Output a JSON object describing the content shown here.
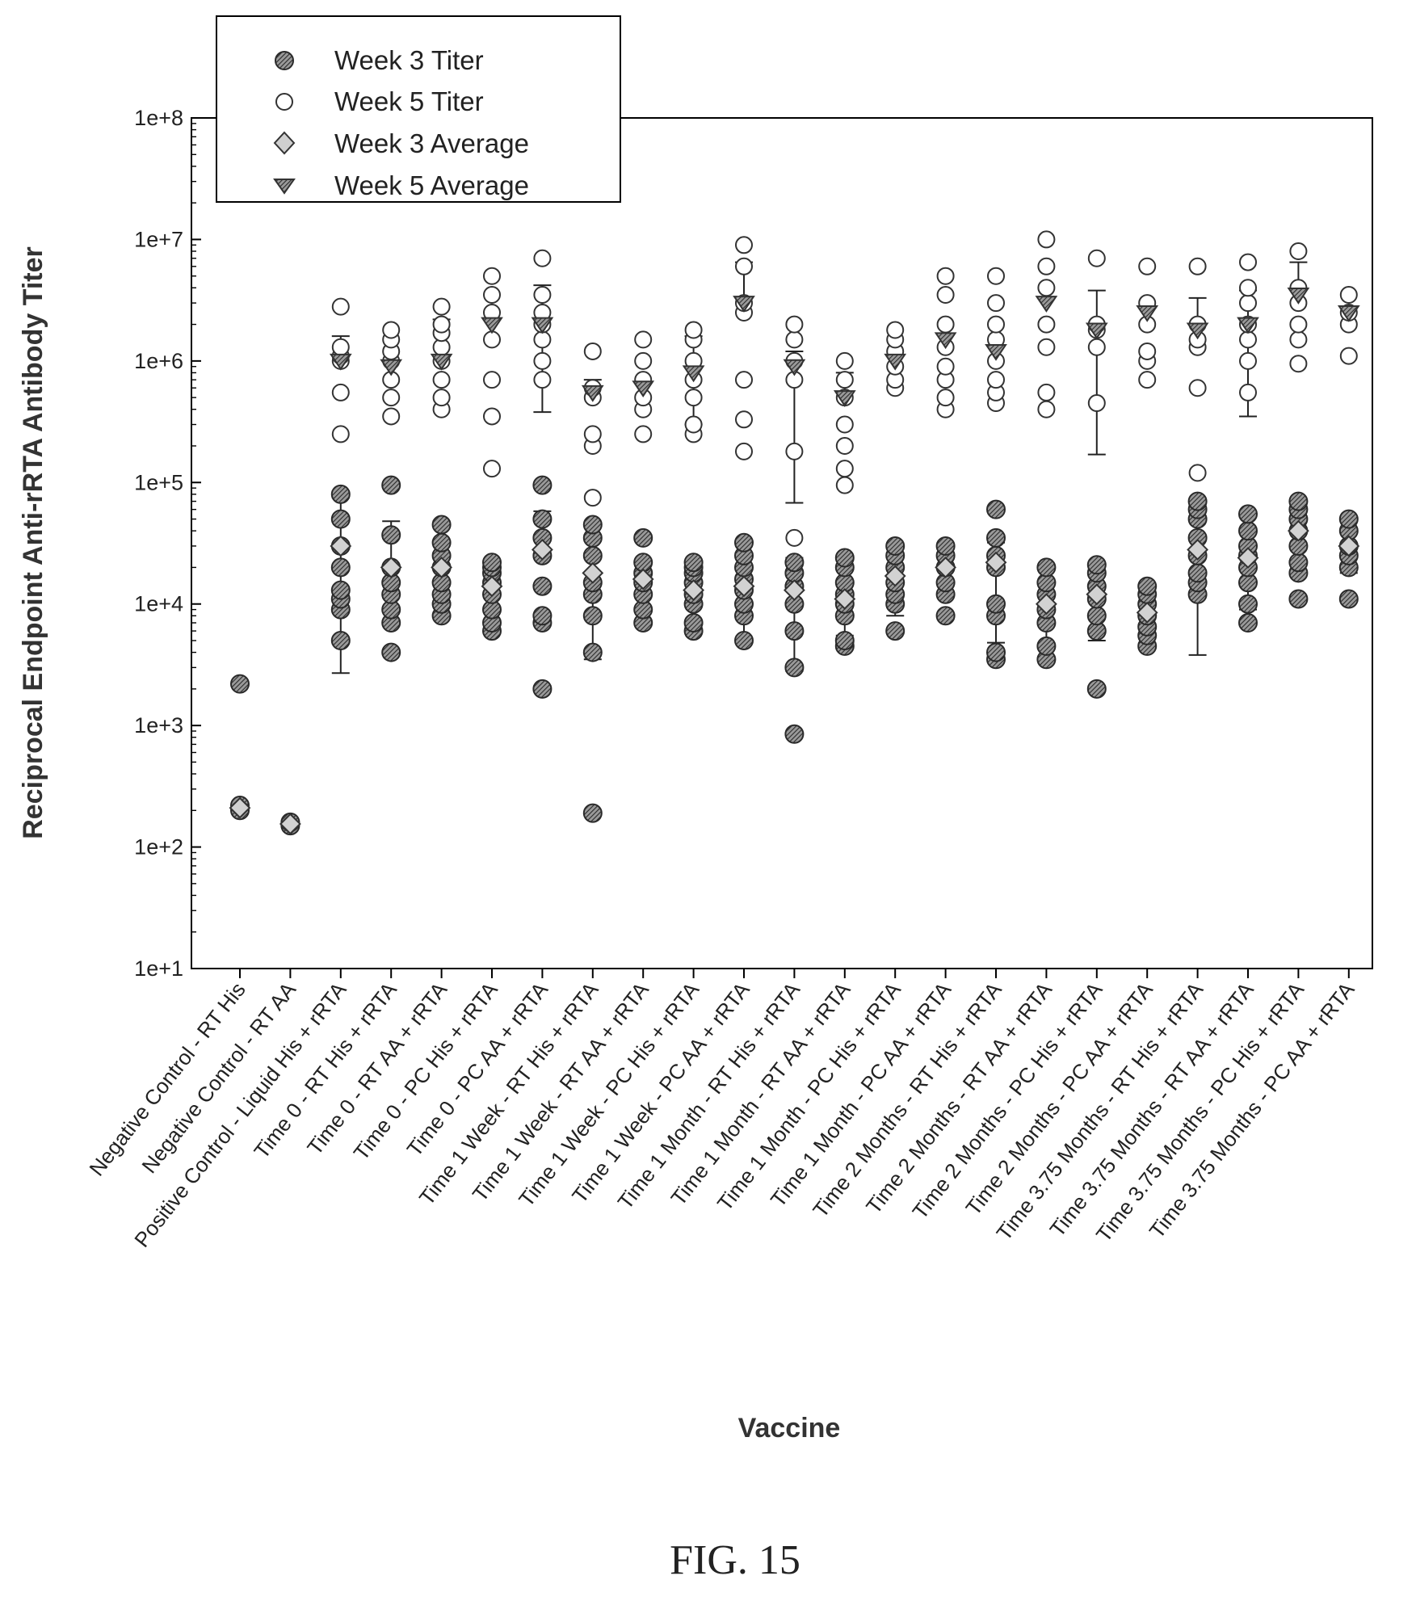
{
  "chart_data": {
    "type": "scatter",
    "ylabel": "Reciprocal Endpoint Anti-rRTA Antibody Titer",
    "xlabel": "Vaccine",
    "y_scale": "log",
    "ylim": [
      10,
      100000000
    ],
    "y_ticks": [
      "1e+1",
      "1e+2",
      "1e+3",
      "1e+4",
      "1e+5",
      "1e+6",
      "1e+7",
      "1e+8"
    ],
    "legend_position": "top-left",
    "legend": [
      {
        "label": "Week 3 Titer",
        "marker": "filled-circle"
      },
      {
        "label": "Week 5 Titer",
        "marker": "open-circle"
      },
      {
        "label": "Week 3 Average",
        "marker": "diamond"
      },
      {
        "label": "Week 5 Average",
        "marker": "triangle-down"
      }
    ],
    "categories": [
      "Negative Control - RT His",
      "Negative Control - RT AA",
      "Positive Control - Liquid His + rRTA",
      "Time 0 - RT His + rRTA",
      "Time 0 - RT AA + rRTA",
      "Time 0 - PC His + rRTA",
      "Time 0 - PC AA + rRTA",
      "Time 1 Week - RT His + rRTA",
      "Time 1 Week - RT AA + rRTA",
      "Time 1 Week - PC His + rRTA",
      "Time 1 Week - PC AA + rRTA",
      "Time 1 Month - RT His + rRTA",
      "Time 1 Month - RT AA + rRTA",
      "Time 1 Month - PC His + rRTA",
      "Time 1 Month - PC AA + rRTA",
      "Time 2 Months - RT His + rRTA",
      "Time 2 Months - RT AA + rRTA",
      "Time 2 Months - PC His + rRTA",
      "Time 2 Months - PC AA + rRTA",
      "Time 3.75 Months - RT His + rRTA",
      "Time 3.75 Months - RT AA + rRTA",
      "Time 3.75 Months - PC His + rRTA",
      "Time 3.75 Months - PC AA + rRTA"
    ],
    "series": [
      {
        "name": "Week 3 Titer",
        "values": [
          [
            2200,
            220,
            200
          ],
          [
            150,
            160
          ],
          [
            5000,
            9000,
            11000,
            13000,
            20000,
            30000,
            50000,
            80000
          ],
          [
            4000,
            7000,
            9000,
            12000,
            15000,
            20000,
            37000,
            95000
          ],
          [
            8000,
            10000,
            12000,
            15000,
            20000,
            25000,
            32000,
            45000
          ],
          [
            6000,
            7000,
            9000,
            12000,
            15000,
            18000,
            20000,
            22000
          ],
          [
            2000,
            7000,
            8000,
            14000,
            25000,
            35000,
            50000,
            95000
          ],
          [
            190,
            4000,
            8000,
            12000,
            15000,
            25000,
            35000,
            45000
          ],
          [
            7000,
            9000,
            12000,
            15000,
            18000,
            22000,
            35000
          ],
          [
            6000,
            7000,
            10000,
            12000,
            15000,
            18000,
            20000,
            22000
          ],
          [
            5000,
            8000,
            10000,
            13000,
            16000,
            20000,
            25000,
            32000
          ],
          [
            850,
            3000,
            6000,
            10000,
            14000,
            18000,
            22000
          ],
          [
            4500,
            5000,
            8000,
            10000,
            12000,
            15000,
            20000,
            24000
          ],
          [
            6000,
            10000,
            12000,
            15000,
            20000,
            25000,
            30000
          ],
          [
            8000,
            12000,
            15000,
            20000,
            25000,
            30000
          ],
          [
            3500,
            4000,
            8000,
            10000,
            20000,
            25000,
            35000,
            60000
          ],
          [
            3500,
            4500,
            7000,
            9000,
            12000,
            15000,
            20000
          ],
          [
            2000,
            6000,
            8000,
            11000,
            14000,
            18000,
            21000
          ],
          [
            4500,
            5500,
            6500,
            8000,
            10000,
            12000,
            14000
          ],
          [
            12000,
            15000,
            18000,
            25000,
            35000,
            50000,
            60000,
            70000
          ],
          [
            7000,
            10000,
            15000,
            20000,
            25000,
            30000,
            40000,
            55000
          ],
          [
            11000,
            18000,
            22000,
            30000,
            40000,
            50000,
            60000,
            70000
          ],
          [
            11000,
            20000,
            25000,
            30000,
            40000,
            50000
          ]
        ]
      },
      {
        "name": "Week 5 Titer",
        "values": [
          [],
          [],
          [
            250000,
            550000,
            1000000,
            1100000,
            1300000,
            2800000
          ],
          [
            350000,
            500000,
            700000,
            1000000,
            1200000,
            1500000,
            1800000
          ],
          [
            400000,
            500000,
            700000,
            1000000,
            1300000,
            1700000,
            2000000,
            2800000
          ],
          [
            130000,
            350000,
            700000,
            1500000,
            2500000,
            3500000,
            5000000
          ],
          [
            700000,
            1000000,
            1500000,
            2000000,
            2500000,
            3500000,
            7000000
          ],
          [
            75000,
            200000,
            250000,
            500000,
            600000,
            1200000
          ],
          [
            250000,
            400000,
            500000,
            700000,
            1000000,
            1500000
          ],
          [
            250000,
            300000,
            500000,
            700000,
            1000000,
            1500000,
            1800000
          ],
          [
            180000,
            330000,
            700000,
            2500000,
            3000000,
            6000000,
            9000000
          ],
          [
            18000,
            35000,
            180000,
            700000,
            1000000,
            1500000,
            2000000
          ],
          [
            95000,
            130000,
            200000,
            300000,
            500000,
            700000,
            1000000
          ],
          [
            600000,
            700000,
            900000,
            1200000,
            1500000,
            1800000
          ],
          [
            400000,
            500000,
            700000,
            900000,
            1300000,
            2000000,
            3500000,
            5000000
          ],
          [
            450000,
            550000,
            700000,
            1000000,
            1500000,
            2000000,
            3000000,
            5000000
          ],
          [
            400000,
            550000,
            1300000,
            2000000,
            4000000,
            6000000,
            10000000
          ],
          [
            450000,
            1300000,
            1800000,
            2000000,
            7000000
          ],
          [
            700000,
            1000000,
            1200000,
            2000000,
            3000000,
            6000000
          ],
          [
            120000,
            600000,
            1300000,
            1500000,
            2000000,
            6000000
          ],
          [
            550000,
            1000000,
            1500000,
            2000000,
            3000000,
            4000000,
            6500000
          ],
          [
            950000,
            1500000,
            2000000,
            3000000,
            4000000,
            8000000
          ],
          [
            1100000,
            2000000,
            2500000,
            3500000
          ]
        ]
      },
      {
        "name": "Week 3 Average",
        "values": [
          210,
          155,
          30000,
          20000,
          20000,
          14000,
          28000,
          18000,
          16000,
          13000,
          14000,
          13000,
          11000,
          17000,
          20000,
          22000,
          10000,
          12000,
          8500,
          28000,
          24000,
          40000,
          30000
        ]
      },
      {
        "name": "Week 5 Average",
        "values": [
          null,
          null,
          1000000,
          900000,
          1000000,
          2000000,
          2000000,
          550000,
          600000,
          800000,
          3000000,
          900000,
          500000,
          1000000,
          1500000,
          1200000,
          3000000,
          1800000,
          2500000,
          1800000,
          2000000,
          3500000,
          2500000
        ]
      }
    ],
    "error_bars": {
      "week3": [
        null,
        null,
        [
          2700,
          75000
        ],
        [
          null,
          48000
        ],
        [
          8000,
          48000
        ],
        [
          null,
          null
        ],
        [
          null,
          58000
        ],
        [
          3500,
          33000
        ],
        [
          null,
          null
        ],
        [
          null,
          null
        ],
        [
          5000,
          33000
        ],
        [
          2800,
          24000
        ],
        [
          5500,
          null
        ],
        [
          8000,
          null
        ],
        [
          null,
          null
        ],
        [
          4800,
          32000
        ],
        [
          4500,
          15000
        ],
        [
          5000,
          22000
        ],
        [
          null,
          null
        ],
        [
          3800,
          65000
        ],
        [
          9000,
          55000
        ],
        [
          null,
          60000
        ],
        [
          18000,
          48000
        ]
      ],
      "week5": [
        null,
        null,
        [
          null,
          1600000
        ],
        [
          null,
          null
        ],
        [
          null,
          2200000
        ],
        [
          null,
          null
        ],
        [
          380000,
          4200000
        ],
        [
          null,
          700000
        ],
        [
          null,
          null
        ],
        [
          300000,
          1600000
        ],
        [
          null,
          6500000
        ],
        [
          68000,
          1200000
        ],
        [
          null,
          800000
        ],
        [
          null,
          null
        ],
        [
          null,
          null
        ],
        [
          null,
          null
        ],
        [
          null,
          null
        ],
        [
          170000,
          3800000
        ],
        [
          null,
          null
        ],
        [
          null,
          3300000
        ],
        [
          350000,
          3800000
        ],
        [
          null,
          6500000
        ],
        [
          null,
          null
        ]
      ]
    }
  },
  "figure_caption": "FIG. 15"
}
